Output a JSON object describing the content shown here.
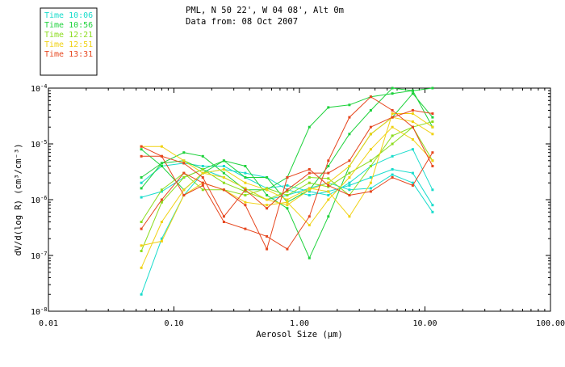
{
  "header": {
    "title": "PML, N 50 22', W 04 08', Alt 0m",
    "subtitle": "Data from: 08 Oct 2007"
  },
  "chart_data": {
    "type": "line",
    "xscale": "log",
    "yscale": "log",
    "xlim": [
      0.01,
      100
    ],
    "ylim": [
      1e-08,
      0.0001
    ],
    "xlabel": "Aerosol Size (μm)",
    "ylabel": "dV/d(log R) (cm³/cm⁻³)",
    "xtick_labels": [
      {
        "value": 0.01,
        "label": "0.01"
      },
      {
        "value": 0.1,
        "label": "0.10"
      },
      {
        "value": 1,
        "label": "1.00"
      },
      {
        "value": 10,
        "label": "10.00"
      },
      {
        "value": 100,
        "label": "100.00"
      }
    ],
    "ytick_labels": [
      {
        "value": 1e-08,
        "mant": "10",
        "exp": "-8"
      },
      {
        "value": 1e-07,
        "mant": "10",
        "exp": "-7"
      },
      {
        "value": 1e-06,
        "mant": "10",
        "exp": "-6"
      },
      {
        "value": 1e-05,
        "mant": "10",
        "exp": "-5"
      },
      {
        "value": 0.0001,
        "mant": "10",
        "exp": "-4"
      }
    ],
    "legend": {
      "placement": "top-left",
      "entries": [
        {
          "label": "Time 10:06",
          "color": "#19dccc"
        },
        {
          "label": "Time 10:56",
          "color": "#1ed23c"
        },
        {
          "label": "Time 12:21",
          "color": "#8cdc1e"
        },
        {
          "label": "Time 12:51",
          "color": "#f0d214"
        },
        {
          "label": "Time 13:31",
          "color": "#e6461e"
        }
      ]
    },
    "x": [
      0.055,
      0.08,
      0.12,
      0.17,
      0.25,
      0.37,
      0.55,
      0.8,
      1.2,
      1.7,
      2.5,
      3.7,
      5.5,
      8,
      11.5
    ],
    "series": [
      {
        "color": "#19dccc",
        "values": [
          2e-08,
          2e-07,
          1.2e-06,
          3e-06,
          3.5e-06,
          3e-06,
          2.5e-06,
          1.5e-06,
          1.2e-06,
          1.4e-06,
          1.8e-06,
          2.5e-06,
          3.5e-06,
          3e-06,
          8e-07
        ]
      },
      {
        "color": "#19dccc",
        "values": [
          1.1e-06,
          1.4e-06,
          2.5e-06,
          3.5e-06,
          2.5e-06,
          1.6e-06,
          1e-06,
          1.2e-06,
          1.6e-06,
          2e-06,
          1.5e-06,
          1.6e-06,
          2.8e-06,
          2e-06,
          6e-07
        ]
      },
      {
        "color": "#19dccc",
        "values": [
          2e-06,
          4e-06,
          4.5e-06,
          4e-06,
          4e-06,
          2.5e-06,
          1.6e-06,
          1.8e-06,
          1.4e-06,
          1.2e-06,
          2e-06,
          4e-06,
          6e-06,
          8e-06,
          1.5e-06
        ]
      },
      {
        "color": "#1ed23c",
        "values": [
          2.5e-06,
          4.5e-06,
          7e-06,
          6e-06,
          3e-06,
          1.5e-06,
          1.5e-06,
          2.5e-06,
          2e-05,
          4.5e-05,
          5e-05,
          7e-05,
          8e-05,
          9e-05,
          0.0001
        ]
      },
      {
        "color": "#1ed23c",
        "values": [
          1.6e-06,
          4.5e-06,
          5e-06,
          3.5e-06,
          5e-06,
          2.5e-06,
          2.5e-06,
          9e-07,
          1.5e-06,
          4e-06,
          1.5e-05,
          4e-05,
          0.0001,
          9e-05,
          2e-05
        ]
      },
      {
        "color": "#1ed23c",
        "values": [
          8e-06,
          4e-06,
          1.5e-06,
          3e-06,
          5e-06,
          4e-06,
          1.2e-06,
          7e-07,
          9e-08,
          5e-07,
          4e-06,
          1.5e-05,
          3e-05,
          8e-05,
          3e-05
        ]
      },
      {
        "color": "#8cdc1e",
        "values": [
          4e-07,
          1.5e-06,
          3e-06,
          1.5e-06,
          1.5e-06,
          1.2e-06,
          1.6e-06,
          1.2e-06,
          2e-06,
          1.7e-06,
          3e-06,
          5e-06,
          1e-05,
          2e-05,
          2.5e-05
        ]
      },
      {
        "color": "#8cdc1e",
        "values": [
          1.2e-07,
          9e-07,
          2.5e-06,
          3.5e-06,
          2e-06,
          1.4e-06,
          1e-06,
          1.4e-06,
          2.5e-06,
          2.4e-06,
          1.2e-06,
          4e-06,
          1.4e-05,
          2e-05,
          5e-06
        ]
      },
      {
        "color": "#f0d214",
        "values": [
          6e-08,
          4e-07,
          1.5e-06,
          3e-06,
          2.5e-06,
          1.6e-06,
          1e-06,
          8e-07,
          1.5e-06,
          2e-06,
          4e-06,
          1.5e-05,
          3e-05,
          2.5e-05,
          1.5e-05
        ]
      },
      {
        "color": "#f0d214",
        "values": [
          1.5e-07,
          1.8e-07,
          1.2e-06,
          2e-06,
          1.5e-06,
          9e-07,
          8e-07,
          9e-07,
          3.5e-07,
          1e-06,
          2.5e-06,
          8e-06,
          2e-05,
          1.2e-05,
          5e-06
        ]
      },
      {
        "color": "#f0d214",
        "values": [
          9e-06,
          9e-06,
          5e-06,
          3e-06,
          3.5e-06,
          2e-06,
          1.5e-06,
          1e-06,
          1.6e-06,
          1.4e-06,
          5e-07,
          2e-06,
          3.5e-05,
          3.5e-05,
          2e-05
        ]
      },
      {
        "color": "#e6461e",
        "values": [
          3e-07,
          1e-06,
          3e-06,
          2e-06,
          1.5e-06,
          8e-07,
          1.3e-07,
          2.5e-06,
          3.5e-06,
          1.8e-06,
          1.2e-06,
          1.4e-06,
          2.5e-06,
          1.8e-06,
          7e-06
        ]
      },
      {
        "color": "#e6461e",
        "values": [
          9e-06,
          6e-06,
          1.2e-06,
          1.8e-06,
          4e-07,
          3e-07,
          2.2e-07,
          1.3e-07,
          5e-07,
          5e-06,
          3e-05,
          7e-05,
          4e-05,
          2e-05,
          4e-06
        ]
      },
      {
        "color": "#e6461e",
        "values": [
          6e-06,
          6e-06,
          4.5e-06,
          2.5e-06,
          5e-07,
          1.5e-06,
          7e-07,
          1.5e-06,
          3e-06,
          3e-06,
          5e-06,
          2e-05,
          3e-05,
          4e-05,
          3.5e-05
        ]
      }
    ]
  }
}
